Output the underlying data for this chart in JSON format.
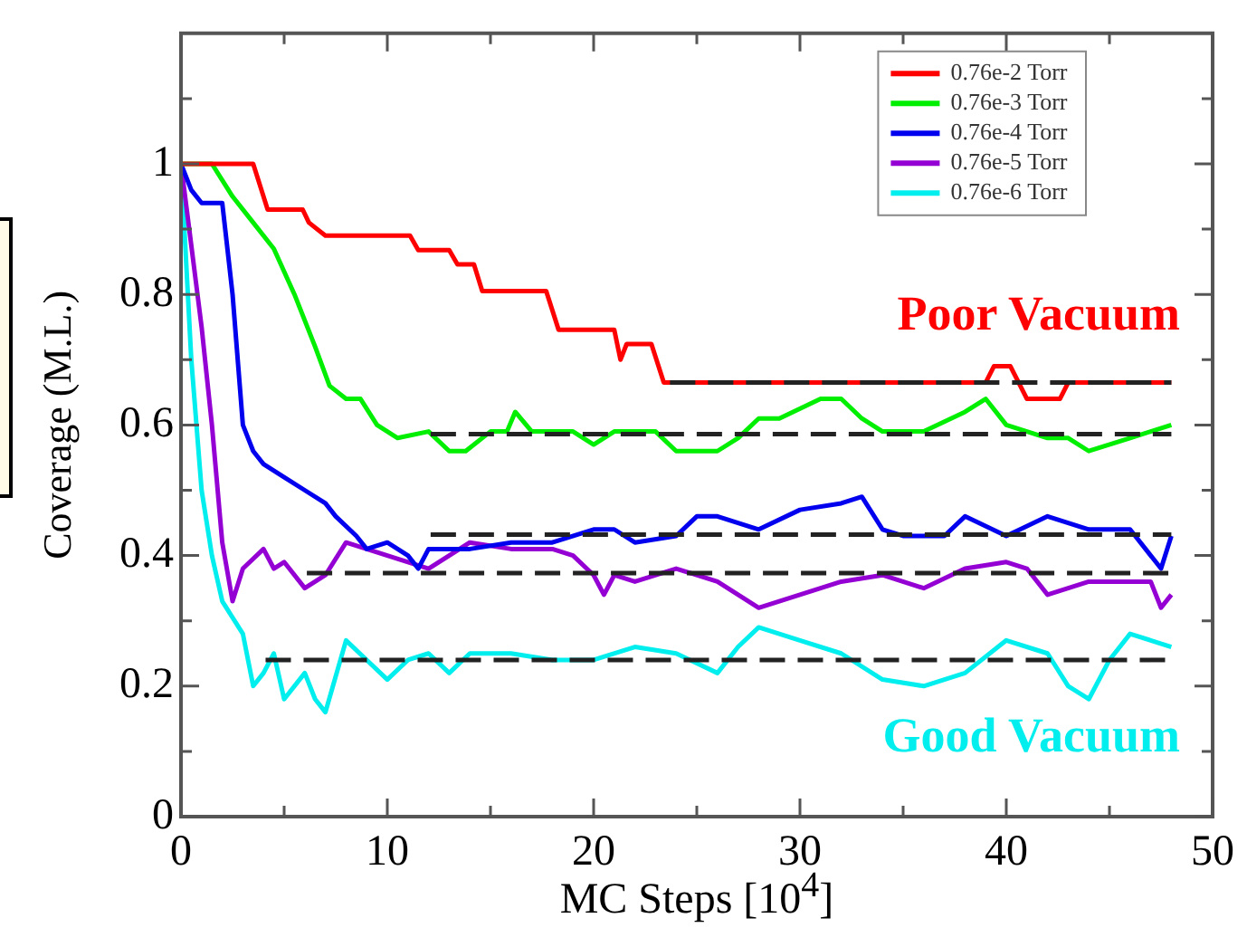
{
  "chart_data": {
    "type": "line",
    "xlabel": "MC Steps [10$^{4}$]",
    "ylabel": "Coverage (M.L.)",
    "xlim": [
      0,
      50
    ],
    "xticks": [
      0,
      {
        "value": 5,
        "label": null
      },
      10,
      {
        "value": 15,
        "label": null
      },
      20,
      {
        "value": 25,
        "label": null
      },
      30,
      {
        "value": 35,
        "label": null
      },
      40,
      {
        "value": 45,
        "label": null
      },
      50
    ],
    "ylim": [
      0,
      1.2
    ],
    "yticks": [
      0,
      {
        "value": 0.1,
        "label": null
      },
      0.2,
      {
        "value": 0.3,
        "label": null
      },
      0.4,
      {
        "value": 0.5,
        "label": null
      },
      0.6,
      {
        "value": 0.7,
        "label": null
      },
      0.8,
      {
        "value": 0.9,
        "label": null
      },
      1,
      {
        "value": 1.1,
        "label": null
      }
    ],
    "grid": false,
    "legend": "top right",
    "marker": "none",
    "line_style": "solid",
    "series": [
      {
        "name": "0.76e-2 Torr",
        "color": "#ff0000",
        "x": [
          0,
          3.5,
          4.2,
          5.9,
          6.2,
          7.0,
          11.1,
          11.5,
          13,
          13.4,
          14.2,
          14.6,
          17.7,
          18.3,
          21,
          21.3,
          21.6,
          22.8,
          23.4,
          39,
          39.4,
          40.2,
          40.6,
          41,
          42.6,
          43,
          48
        ],
        "values": [
          1,
          1,
          0.93,
          0.93,
          0.91,
          0.89,
          0.89,
          0.868,
          0.868,
          0.846,
          0.846,
          0.805,
          0.805,
          0.746,
          0.746,
          0.7,
          0.724,
          0.724,
          0.665,
          0.665,
          0.69,
          0.69,
          0.665,
          0.64,
          0.64,
          0.665,
          0.665
        ]
      },
      {
        "name": "0.76e-3 Torr",
        "color": "#00ee00",
        "x": [
          0,
          1.5,
          2.5,
          3.5,
          4.5,
          5.5,
          6.5,
          7.2,
          8,
          8.7,
          9.5,
          10.5,
          12,
          13,
          13.8,
          15,
          15.8,
          16.2,
          17,
          19,
          20,
          21,
          23,
          24,
          26,
          27,
          28,
          29,
          31,
          32,
          33,
          34,
          36,
          38,
          39,
          40,
          42,
          43,
          44,
          46,
          47,
          48
        ],
        "values": [
          1,
          1,
          0.95,
          0.91,
          0.87,
          0.8,
          0.72,
          0.66,
          0.64,
          0.64,
          0.6,
          0.58,
          0.59,
          0.56,
          0.56,
          0.59,
          0.59,
          0.62,
          0.59,
          0.59,
          0.57,
          0.59,
          0.59,
          0.56,
          0.56,
          0.58,
          0.61,
          0.61,
          0.64,
          0.64,
          0.61,
          0.59,
          0.59,
          0.62,
          0.64,
          0.6,
          0.58,
          0.58,
          0.56,
          0.58,
          0.59,
          0.6
        ]
      },
      {
        "name": "0.76e-4 Torr",
        "color": "#0000ee",
        "x": [
          0,
          0.5,
          1,
          2,
          2.5,
          3,
          3.5,
          4,
          5,
          6,
          7,
          7.5,
          8.5,
          9,
          10,
          11,
          11.5,
          12,
          14,
          16,
          18,
          20,
          21,
          22,
          24,
          25,
          26,
          28,
          30,
          32,
          33,
          34,
          35,
          37,
          38,
          40,
          42,
          44,
          46,
          47,
          47.5,
          48
        ],
        "values": [
          1,
          0.96,
          0.94,
          0.94,
          0.8,
          0.6,
          0.56,
          0.54,
          0.52,
          0.5,
          0.48,
          0.46,
          0.43,
          0.41,
          0.42,
          0.4,
          0.38,
          0.41,
          0.41,
          0.42,
          0.42,
          0.44,
          0.44,
          0.42,
          0.43,
          0.46,
          0.46,
          0.44,
          0.47,
          0.48,
          0.49,
          0.44,
          0.43,
          0.43,
          0.46,
          0.43,
          0.46,
          0.44,
          0.44,
          0.4,
          0.38,
          0.43
        ]
      },
      {
        "name": "0.76e-5 Torr",
        "color": "#9400d3",
        "x": [
          0,
          1,
          1.5,
          2,
          2.5,
          3,
          4,
          4.5,
          5,
          6,
          7,
          8,
          9,
          10,
          12,
          14,
          16,
          18,
          19,
          20,
          20.5,
          21,
          22,
          24,
          26,
          28,
          29,
          30,
          32,
          34,
          36,
          38,
          40,
          41,
          42,
          44,
          46,
          47,
          47.5,
          48
        ],
        "values": [
          1,
          0.75,
          0.6,
          0.42,
          0.33,
          0.38,
          0.41,
          0.38,
          0.39,
          0.35,
          0.37,
          0.42,
          0.41,
          0.4,
          0.38,
          0.42,
          0.41,
          0.41,
          0.4,
          0.37,
          0.34,
          0.37,
          0.36,
          0.38,
          0.36,
          0.32,
          0.33,
          0.34,
          0.36,
          0.37,
          0.35,
          0.38,
          0.39,
          0.38,
          0.34,
          0.36,
          0.36,
          0.36,
          0.32,
          0.34
        ]
      },
      {
        "name": "0.76e-6 Torr",
        "color": "#00eeee",
        "x": [
          0,
          0.5,
          1,
          1.5,
          2,
          3,
          3.5,
          4,
          4.5,
          5,
          6,
          6.5,
          7,
          8,
          9,
          10,
          11,
          12,
          13,
          14,
          16,
          18,
          20,
          22,
          24,
          26,
          27,
          28,
          30,
          32,
          34,
          36,
          38,
          40,
          42,
          43,
          44,
          45,
          46,
          47,
          48
        ],
        "values": [
          1,
          0.7,
          0.5,
          0.4,
          0.33,
          0.28,
          0.2,
          0.22,
          0.25,
          0.18,
          0.22,
          0.18,
          0.16,
          0.27,
          0.24,
          0.21,
          0.24,
          0.25,
          0.22,
          0.25,
          0.25,
          0.24,
          0.24,
          0.26,
          0.25,
          0.22,
          0.26,
          0.29,
          0.27,
          0.25,
          0.21,
          0.2,
          0.22,
          0.27,
          0.25,
          0.2,
          0.18,
          0.24,
          0.28,
          0.27,
          0.26
        ]
      },
      {
        "color": "#222222",
        "line_style": "dashed",
        "x": [
          23.7,
          48
        ],
        "values": [
          0.665,
          0.665
        ]
      },
      {
        "color": "#222222",
        "line_style": "dashed",
        "x": [
          12.1,
          48
        ],
        "values": [
          0.586,
          0.586
        ]
      },
      {
        "color": "#222222",
        "line_style": "dashed",
        "x": [
          12.1,
          48
        ],
        "values": [
          0.432,
          0.432
        ]
      },
      {
        "color": "#222222",
        "line_style": "dashed",
        "x": [
          6.1,
          48
        ],
        "values": [
          0.373,
          0.373
        ]
      },
      {
        "color": "#222222",
        "line_style": "dashed",
        "x": [
          4.1,
          48
        ],
        "values": [
          0.24,
          0.24
        ]
      }
    ],
    "annotations": [
      "Poor Vacuum",
      "Good Vacuum"
    ]
  }
}
